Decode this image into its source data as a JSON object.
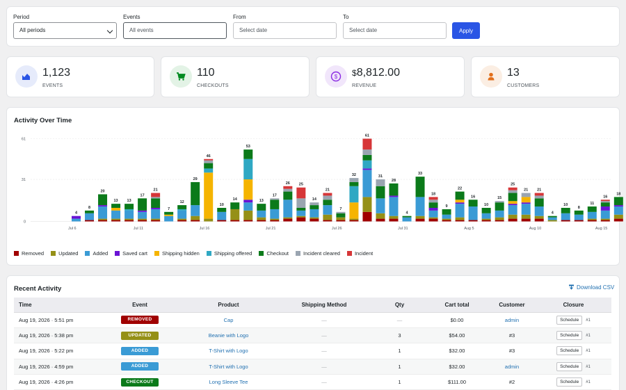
{
  "filters": {
    "period_label": "Period",
    "period_value": "All periods",
    "events_label": "Events",
    "events_value": "All events",
    "from_label": "From",
    "from_placeholder": "Select date",
    "to_label": "To",
    "to_placeholder": "Select date",
    "apply_label": "Apply"
  },
  "stats": [
    {
      "value": "1,123",
      "prefix": "",
      "caption": "EVENTS",
      "icon": "chart-icon",
      "color": "#2a55e5",
      "bg": "#e6ebfb"
    },
    {
      "value": "110",
      "prefix": "",
      "caption": "CHECKOUTS",
      "icon": "cart-icon",
      "color": "#008a20",
      "bg": "#e3f3e6"
    },
    {
      "value": "8,812.00",
      "prefix": "$",
      "caption": "REVENUE",
      "icon": "dollar-icon",
      "color": "#8a2be2",
      "bg": "#f1e6fb"
    },
    {
      "value": "13",
      "prefix": "",
      "caption": "CUSTOMERS",
      "icon": "person-icon",
      "color": "#e26f1b",
      "bg": "#fbeee3"
    }
  ],
  "chart_title": "Activity Over Time",
  "chart_data": {
    "type": "bar",
    "stacked": true,
    "y_ticks": [
      0,
      31,
      61
    ],
    "ylim": [
      0,
      61
    ],
    "x_tick_labels": [
      {
        "label": "Jul 6",
        "index": -0.3
      },
      {
        "label": "Jul 11",
        "index": 4.7
      },
      {
        "label": "Jul 16",
        "index": 9.7
      },
      {
        "label": "Jul 21",
        "index": 14.7
      },
      {
        "label": "Jul 26",
        "index": 19.7
      },
      {
        "label": "Jul 31",
        "index": 24.7
      },
      {
        "label": "Aug 5",
        "index": 29.7
      },
      {
        "label": "Aug 10",
        "index": 34.7
      },
      {
        "label": "Aug 15",
        "index": 39.7
      }
    ],
    "totals": [
      4,
      8,
      20,
      13,
      13,
      17,
      21,
      7,
      12,
      29,
      46,
      10,
      14,
      53,
      13,
      17,
      26,
      25,
      14,
      21,
      7,
      32,
      61,
      31,
      28,
      4,
      33,
      18,
      9,
      22,
      16,
      10,
      15,
      25,
      21,
      21,
      4,
      10,
      8,
      11,
      16,
      18
    ],
    "series": [
      {
        "name": "Removed",
        "color": "#a00000",
        "values": [
          0,
          1,
          1,
          1,
          1,
          1,
          1,
          0,
          1,
          1,
          0,
          1,
          1,
          1,
          1,
          1,
          2,
          3,
          2,
          1,
          1,
          1,
          7,
          2,
          2,
          0,
          2,
          2,
          1,
          1,
          1,
          1,
          1,
          2,
          2,
          2,
          0,
          1,
          1,
          1,
          1,
          2
        ]
      },
      {
        "name": "Updated",
        "color": "#959017",
        "values": [
          0,
          0,
          1,
          1,
          1,
          1,
          1,
          0,
          1,
          3,
          2,
          0,
          8,
          7,
          2,
          1,
          1,
          1,
          1,
          4,
          2,
          1,
          11,
          4,
          2,
          0,
          2,
          1,
          1,
          2,
          0,
          1,
          2,
          3,
          3,
          2,
          1,
          0,
          0,
          1,
          1,
          3
        ]
      },
      {
        "name": "Added",
        "color": "#3a9bd5",
        "values": [
          2,
          5,
          9,
          6,
          6,
          5,
          7,
          4,
          6,
          8,
          0,
          6,
          0,
          6,
          5,
          7,
          13,
          4,
          6,
          7,
          0,
          0,
          20,
          11,
          14,
          3,
          14,
          5,
          3,
          10,
          10,
          4,
          5,
          7,
          8,
          7,
          2,
          5,
          4,
          5,
          6,
          6
        ]
      },
      {
        "name": "Saved cart",
        "color": "#6a13d5",
        "values": [
          2,
          0,
          1,
          0,
          0,
          1,
          1,
          0,
          0,
          0,
          0,
          0,
          0,
          2,
          0,
          0,
          0,
          0,
          0,
          0,
          0,
          0,
          1,
          0,
          1,
          0,
          0,
          2,
          0,
          1,
          0,
          0,
          0,
          1,
          1,
          0,
          0,
          0,
          0,
          0,
          3,
          1
        ]
      },
      {
        "name": "Shipping hidden",
        "color": "#f5b400",
        "values": [
          0,
          0,
          0,
          2,
          0,
          0,
          0,
          1,
          0,
          0,
          34,
          0,
          0,
          15,
          0,
          0,
          0,
          0,
          0,
          0,
          0,
          12,
          0,
          0,
          0,
          0,
          0,
          0,
          0,
          2,
          0,
          0,
          0,
          2,
          4,
          0,
          0,
          0,
          0,
          0,
          0,
          0
        ]
      },
      {
        "name": "Shipping offered",
        "color": "#2fa8c3",
        "values": [
          0,
          0,
          0,
          0,
          1,
          0,
          0,
          0,
          1,
          0,
          3,
          0,
          0,
          15,
          0,
          0,
          0,
          0,
          0,
          0,
          0,
          12,
          6,
          0,
          0,
          0,
          0,
          0,
          0,
          0,
          0,
          0,
          0,
          0,
          0,
          0,
          0,
          0,
          0,
          0,
          0,
          0
        ]
      },
      {
        "name": "Checkout",
        "color": "#0b7a1a",
        "values": [
          0,
          2,
          8,
          3,
          4,
          9,
          7,
          2,
          3,
          17,
          4,
          3,
          5,
          7,
          5,
          7,
          6,
          2,
          3,
          4,
          3,
          3,
          4,
          9,
          9,
          1,
          15,
          4,
          4,
          6,
          5,
          4,
          6,
          6,
          0,
          6,
          1,
          4,
          3,
          4,
          3,
          6
        ]
      },
      {
        "name": "Incident cleared",
        "color": "#9aa5b1",
        "values": [
          0,
          0,
          0,
          0,
          0,
          0,
          1,
          0,
          0,
          0,
          2,
          0,
          0,
          0,
          0,
          1,
          2,
          7,
          2,
          3,
          1,
          3,
          4,
          5,
          0,
          0,
          0,
          2,
          0,
          0,
          0,
          0,
          1,
          2,
          3,
          2,
          0,
          0,
          0,
          0,
          1,
          0
        ]
      },
      {
        "name": "Incident",
        "color": "#d63638",
        "values": [
          0,
          0,
          0,
          0,
          0,
          0,
          3,
          0,
          0,
          0,
          1,
          0,
          0,
          0,
          0,
          0,
          2,
          8,
          0,
          2,
          0,
          0,
          8,
          0,
          0,
          0,
          0,
          2,
          0,
          0,
          0,
          0,
          0,
          2,
          0,
          2,
          0,
          0,
          0,
          0,
          1,
          0
        ]
      }
    ]
  },
  "recent": {
    "title": "Recent Activity",
    "download_label": "Download CSV",
    "columns": [
      "Time",
      "Event",
      "Product",
      "Shipping Method",
      "Qty",
      "Cart total",
      "Customer",
      "Closure"
    ],
    "rows": [
      {
        "time": "Aug 19, 2026 · 5:51 pm",
        "event": "REMOVED",
        "event_color": "#a00000",
        "product": "Cap",
        "shipping": "—",
        "qty": "—",
        "total": "$0.00",
        "customer": "admin",
        "customer_link": true,
        "closure": "Schedule",
        "closure_num": "#1"
      },
      {
        "time": "Aug 19, 2026 · 5:38 pm",
        "event": "UPDATED",
        "event_color": "#959017",
        "product": "Beanie with Logo",
        "shipping": "—",
        "qty": "3",
        "total": "$54.00",
        "customer": "#3",
        "customer_link": false,
        "closure": "Schedule",
        "closure_num": "#1"
      },
      {
        "time": "Aug 19, 2026 · 5:22 pm",
        "event": "ADDED",
        "event_color": "#3a9bd5",
        "product": "T-Shirt with Logo",
        "shipping": "—",
        "qty": "1",
        "total": "$32.00",
        "customer": "#3",
        "customer_link": false,
        "closure": "Schedule",
        "closure_num": "#1"
      },
      {
        "time": "Aug 19, 2026 · 4:59 pm",
        "event": "ADDED",
        "event_color": "#3a9bd5",
        "product": "T-Shirt with Logo",
        "shipping": "—",
        "qty": "1",
        "total": "$32.00",
        "customer": "admin",
        "customer_link": true,
        "closure": "Schedule",
        "closure_num": "#1"
      },
      {
        "time": "Aug 19, 2026 · 4:26 pm",
        "event": "CHECKOUT",
        "event_color": "#0b7a1a",
        "product": "Long Sleeve Tee",
        "shipping": "—",
        "qty": "1",
        "total": "$111.00",
        "customer": "#2",
        "customer_link": false,
        "closure": "Schedule",
        "closure_num": "#1"
      }
    ]
  }
}
